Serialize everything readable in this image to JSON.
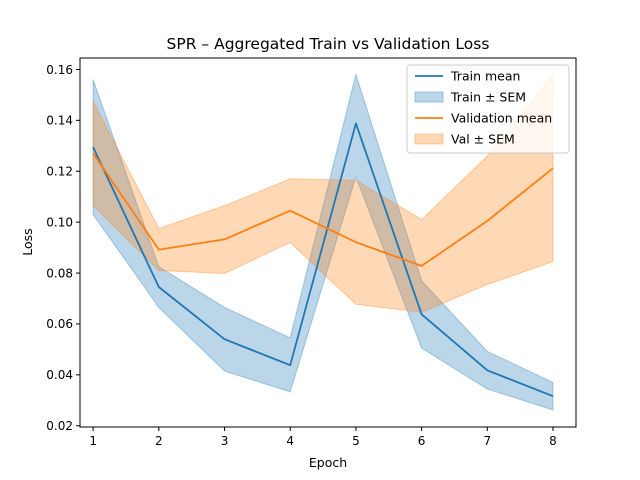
{
  "chart_data": {
    "type": "line",
    "title": "SPR – Aggregated Train vs Validation Loss",
    "xlabel": "Epoch",
    "ylabel": "Loss",
    "x": [
      1,
      2,
      3,
      4,
      5,
      6,
      7,
      8
    ],
    "xlim": [
      0.8,
      8.35
    ],
    "ylim": [
      0.0195,
      0.1645
    ],
    "xticks": [
      "1",
      "2",
      "3",
      "4",
      "5",
      "6",
      "7",
      "8"
    ],
    "yticks": [
      "0.02",
      "0.04",
      "0.06",
      "0.08",
      "0.10",
      "0.12",
      "0.14",
      "0.16"
    ],
    "legend_position": "top-right",
    "series": [
      {
        "name": "Train mean",
        "band_name": "Train ± SEM",
        "color": "#1f77b4",
        "values": [
          0.1295,
          0.0745,
          0.054,
          0.0438,
          0.1388,
          0.0638,
          0.0418,
          0.0316
        ],
        "upper": [
          0.156,
          0.0825,
          0.0665,
          0.0545,
          0.158,
          0.077,
          0.0492,
          0.037
        ],
        "lower": [
          0.103,
          0.0665,
          0.0415,
          0.0333,
          0.1178,
          0.0505,
          0.0344,
          0.0262
        ]
      },
      {
        "name": "Validation mean",
        "band_name": "Val ± SEM",
        "color": "#ff7f0e",
        "values": [
          0.127,
          0.0892,
          0.0932,
          0.1045,
          0.0921,
          0.0828,
          0.1005,
          0.1212
        ],
        "upper": [
          0.1475,
          0.0975,
          0.1065,
          0.117,
          0.1165,
          0.101,
          0.126,
          0.158
        ],
        "lower": [
          0.1065,
          0.081,
          0.0798,
          0.092,
          0.0677,
          0.0646,
          0.0755,
          0.0845
        ]
      }
    ]
  }
}
